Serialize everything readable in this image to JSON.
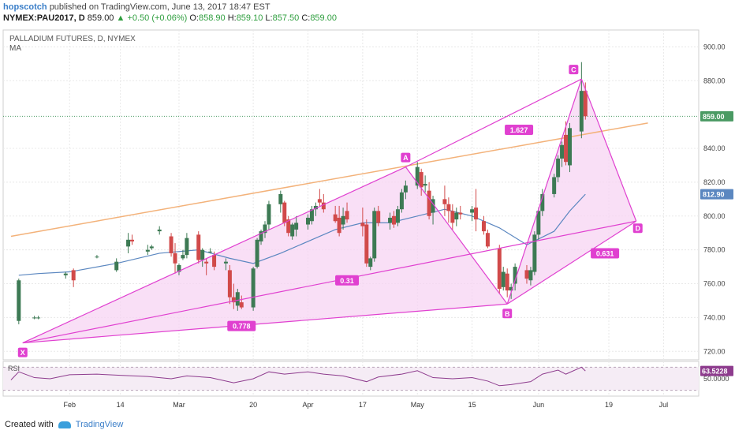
{
  "header": {
    "author": "hopscotch",
    "published_text": "published on TradingView.com, June 13, 2017 18:47 EST",
    "symbol": "NYMEX:PAU2017, D",
    "last": "859.00",
    "change": "▲ +0.50 (+0.06%)",
    "o_label": "O:",
    "o_value": "858.90",
    "h_label": "H:",
    "h_value": "859.10",
    "l_label": "L:",
    "l_value": "857.50",
    "c_label": "C:",
    "c_value": "859.00"
  },
  "footer": {
    "created_with": "Created with",
    "brand": "TradingView"
  },
  "colors": {
    "up": "#3d7a54",
    "down": "#d14a4a",
    "harmonic": "#e040d0",
    "harmonic_fill": "#f7d4f3",
    "trendline": "#f3b27a",
    "ma": "#5b87c0",
    "rsi": "#8e3c8e",
    "price_label": "#4a9a63",
    "ma_label": "#5b87c0",
    "rsi_label": "#8e3c8e",
    "grid": "#e8e8e8"
  },
  "chart_data": {
    "type": "candlestick",
    "title": "PALLADIUM FUTURES, D, NYMEX",
    "indicator_label": "MA",
    "ylim": [
      715,
      910
    ],
    "y_ticks": [
      "900.00",
      "880.00",
      "840.00",
      "820.00",
      "800.00",
      "780.00",
      "760.00",
      "740.00",
      "720.00"
    ],
    "x_ticks": [
      {
        "label": "Feb",
        "date": "2017-02-01"
      },
      {
        "label": "14",
        "date": "2017-02-14"
      },
      {
        "label": "Mar",
        "date": "2017-03-01"
      },
      {
        "label": "20",
        "date": "2017-03-20"
      },
      {
        "label": "Apr",
        "date": "2017-04-03"
      },
      {
        "label": "17",
        "date": "2017-04-17"
      },
      {
        "label": "May",
        "date": "2017-05-01"
      },
      {
        "label": "15",
        "date": "2017-05-15"
      },
      {
        "label": "Jun",
        "date": "2017-06-01"
      },
      {
        "label": "19",
        "date": "2017-06-19"
      },
      {
        "label": "Jul",
        "date": "2017-07-03"
      }
    ],
    "candles": [
      {
        "d": "2017-01-19",
        "o": 738,
        "h": 763,
        "l": 736,
        "c": 762
      },
      {
        "d": "2017-01-23",
        "o": 740,
        "h": 741,
        "l": 739,
        "c": 740
      },
      {
        "d": "2017-01-24",
        "o": 740,
        "h": 741,
        "l": 739,
        "c": 740
      },
      {
        "d": "2017-01-31",
        "o": 765,
        "h": 767,
        "l": 763,
        "c": 766
      },
      {
        "d": "2017-02-02",
        "o": 768,
        "h": 769,
        "l": 758,
        "c": 762
      },
      {
        "d": "2017-02-08",
        "o": 776,
        "h": 777,
        "l": 775,
        "c": 776
      },
      {
        "d": "2017-02-13",
        "o": 768,
        "h": 775,
        "l": 767,
        "c": 773
      },
      {
        "d": "2017-02-16",
        "o": 782,
        "h": 790,
        "l": 778,
        "c": 786
      },
      {
        "d": "2017-02-17",
        "o": 786,
        "h": 789,
        "l": 783,
        "c": 785
      },
      {
        "d": "2017-02-21",
        "o": 779,
        "h": 783,
        "l": 777,
        "c": 780
      },
      {
        "d": "2017-02-22",
        "o": 781,
        "h": 783,
        "l": 780,
        "c": 782
      },
      {
        "d": "2017-02-24",
        "o": 791,
        "h": 794,
        "l": 789,
        "c": 792
      },
      {
        "d": "2017-02-27",
        "o": 788,
        "h": 790,
        "l": 776,
        "c": 778
      },
      {
        "d": "2017-02-28",
        "o": 778,
        "h": 784,
        "l": 766,
        "c": 772
      },
      {
        "d": "2017-03-01",
        "o": 767,
        "h": 772,
        "l": 765,
        "c": 771
      },
      {
        "d": "2017-03-02",
        "o": 775,
        "h": 780,
        "l": 774,
        "c": 777
      },
      {
        "d": "2017-03-03",
        "o": 777,
        "h": 790,
        "l": 775,
        "c": 787
      },
      {
        "d": "2017-03-06",
        "o": 789,
        "h": 791,
        "l": 772,
        "c": 774
      },
      {
        "d": "2017-03-07",
        "o": 774,
        "h": 781,
        "l": 770,
        "c": 780
      },
      {
        "d": "2017-03-08",
        "o": 773,
        "h": 775,
        "l": 765,
        "c": 772
      },
      {
        "d": "2017-03-09",
        "o": 779,
        "h": 781,
        "l": 778,
        "c": 779
      },
      {
        "d": "2017-03-10",
        "o": 777,
        "h": 779,
        "l": 768,
        "c": 770
      },
      {
        "d": "2017-03-13",
        "o": 772,
        "h": 775,
        "l": 768,
        "c": 773
      },
      {
        "d": "2017-03-14",
        "o": 768,
        "h": 771,
        "l": 748,
        "c": 752
      },
      {
        "d": "2017-03-15",
        "o": 752,
        "h": 760,
        "l": 745,
        "c": 749
      },
      {
        "d": "2017-03-16",
        "o": 747,
        "h": 757,
        "l": 744,
        "c": 755
      },
      {
        "d": "2017-03-17",
        "o": 749,
        "h": 753,
        "l": 745,
        "c": 746
      },
      {
        "d": "2017-03-20",
        "o": 746,
        "h": 770,
        "l": 744,
        "c": 769
      },
      {
        "d": "2017-03-21",
        "o": 770,
        "h": 787,
        "l": 769,
        "c": 786
      },
      {
        "d": "2017-03-22",
        "o": 785,
        "h": 792,
        "l": 783,
        "c": 791
      },
      {
        "d": "2017-03-23",
        "o": 790,
        "h": 797,
        "l": 787,
        "c": 795
      },
      {
        "d": "2017-03-24",
        "o": 795,
        "h": 809,
        "l": 792,
        "c": 807
      },
      {
        "d": "2017-03-27",
        "o": 807,
        "h": 815,
        "l": 802,
        "c": 813
      },
      {
        "d": "2017-03-28",
        "o": 808,
        "h": 809,
        "l": 794,
        "c": 796
      },
      {
        "d": "2017-03-29",
        "o": 798,
        "h": 800,
        "l": 788,
        "c": 790
      },
      {
        "d": "2017-03-30",
        "o": 788,
        "h": 796,
        "l": 786,
        "c": 795
      },
      {
        "d": "2017-03-31",
        "o": 792,
        "h": 800,
        "l": 788,
        "c": 796
      },
      {
        "d": "2017-04-03",
        "o": 795,
        "h": 801,
        "l": 792,
        "c": 799
      },
      {
        "d": "2017-04-04",
        "o": 797,
        "h": 806,
        "l": 795,
        "c": 804
      },
      {
        "d": "2017-04-05",
        "o": 804,
        "h": 808,
        "l": 800,
        "c": 806
      },
      {
        "d": "2017-04-06",
        "o": 810,
        "h": 816,
        "l": 806,
        "c": 808
      },
      {
        "d": "2017-04-07",
        "o": 808,
        "h": 813,
        "l": 802,
        "c": 804
      },
      {
        "d": "2017-04-10",
        "o": 801,
        "h": 806,
        "l": 796,
        "c": 797
      },
      {
        "d": "2017-04-11",
        "o": 799,
        "h": 806,
        "l": 788,
        "c": 790
      },
      {
        "d": "2017-04-12",
        "o": 795,
        "h": 805,
        "l": 792,
        "c": 800
      },
      {
        "d": "2017-04-13",
        "o": 803,
        "h": 808,
        "l": 796,
        "c": 798
      },
      {
        "d": "2017-04-17",
        "o": 796,
        "h": 805,
        "l": 788,
        "c": 794
      },
      {
        "d": "2017-04-18",
        "o": 795,
        "h": 798,
        "l": 770,
        "c": 772
      },
      {
        "d": "2017-04-19",
        "o": 770,
        "h": 776,
        "l": 768,
        "c": 775
      },
      {
        "d": "2017-04-20",
        "o": 775,
        "h": 805,
        "l": 773,
        "c": 803
      },
      {
        "d": "2017-04-21",
        "o": 803,
        "h": 806,
        "l": 794,
        "c": 796
      },
      {
        "d": "2017-04-24",
        "o": 796,
        "h": 802,
        "l": 792,
        "c": 799
      },
      {
        "d": "2017-04-25",
        "o": 800,
        "h": 803,
        "l": 793,
        "c": 795
      },
      {
        "d": "2017-04-26",
        "o": 796,
        "h": 806,
        "l": 794,
        "c": 804
      },
      {
        "d": "2017-04-27",
        "o": 804,
        "h": 816,
        "l": 802,
        "c": 814
      },
      {
        "d": "2017-04-28",
        "o": 814,
        "h": 821,
        "l": 810,
        "c": 818
      },
      {
        "d": "2017-05-01",
        "o": 818,
        "h": 832,
        "l": 816,
        "c": 829
      },
      {
        "d": "2017-05-02",
        "o": 826,
        "h": 828,
        "l": 812,
        "c": 817
      },
      {
        "d": "2017-05-03",
        "o": 818,
        "h": 824,
        "l": 814,
        "c": 819
      },
      {
        "d": "2017-05-04",
        "o": 815,
        "h": 820,
        "l": 798,
        "c": 800
      },
      {
        "d": "2017-05-05",
        "o": 802,
        "h": 812,
        "l": 795,
        "c": 810
      },
      {
        "d": "2017-05-08",
        "o": 810,
        "h": 818,
        "l": 800,
        "c": 807
      },
      {
        "d": "2017-05-09",
        "o": 807,
        "h": 811,
        "l": 796,
        "c": 803
      },
      {
        "d": "2017-05-10",
        "o": 803,
        "h": 807,
        "l": 792,
        "c": 796
      },
      {
        "d": "2017-05-11",
        "o": 798,
        "h": 805,
        "l": 794,
        "c": 802
      },
      {
        "d": "2017-05-12",
        "o": 802,
        "h": 806,
        "l": 798,
        "c": 801
      },
      {
        "d": "2017-05-15",
        "o": 802,
        "h": 806,
        "l": 797,
        "c": 804
      },
      {
        "d": "2017-05-16",
        "o": 805,
        "h": 816,
        "l": 791,
        "c": 798
      },
      {
        "d": "2017-05-18",
        "o": 797,
        "h": 800,
        "l": 789,
        "c": 791
      },
      {
        "d": "2017-05-19",
        "o": 790,
        "h": 792,
        "l": 781,
        "c": 782
      },
      {
        "d": "2017-05-22",
        "o": 781,
        "h": 783,
        "l": 754,
        "c": 757
      },
      {
        "d": "2017-05-23",
        "o": 758,
        "h": 770,
        "l": 756,
        "c": 767
      },
      {
        "d": "2017-05-24",
        "o": 766,
        "h": 769,
        "l": 752,
        "c": 756
      },
      {
        "d": "2017-05-25",
        "o": 756,
        "h": 760,
        "l": 751,
        "c": 758
      },
      {
        "d": "2017-05-26",
        "o": 760,
        "h": 772,
        "l": 756,
        "c": 770
      },
      {
        "d": "2017-05-29",
        "o": 768,
        "h": 771,
        "l": 760,
        "c": 763
      },
      {
        "d": "2017-05-30",
        "o": 762,
        "h": 770,
        "l": 759,
        "c": 768
      },
      {
        "d": "2017-05-31",
        "o": 767,
        "h": 791,
        "l": 765,
        "c": 789
      },
      {
        "d": "2017-06-01",
        "o": 789,
        "h": 805,
        "l": 786,
        "c": 803
      },
      {
        "d": "2017-06-02",
        "o": 803,
        "h": 816,
        "l": 800,
        "c": 813
      },
      {
        "d": "2017-06-05",
        "o": 813,
        "h": 825,
        "l": 811,
        "c": 823
      },
      {
        "d": "2017-06-06",
        "o": 823,
        "h": 836,
        "l": 820,
        "c": 834
      },
      {
        "d": "2017-06-07",
        "o": 834,
        "h": 844,
        "l": 829,
        "c": 842
      },
      {
        "d": "2017-06-08",
        "o": 848,
        "h": 856,
        "l": 830,
        "c": 832
      },
      {
        "d": "2017-06-09",
        "o": 830,
        "h": 855,
        "l": 826,
        "c": 852
      },
      {
        "d": "2017-06-12",
        "o": 850,
        "h": 891,
        "l": 846,
        "c": 874
      },
      {
        "d": "2017-06-13",
        "o": 874,
        "h": 879,
        "l": 857,
        "c": 859
      }
    ],
    "moving_average": [
      {
        "d": "2017-01-19",
        "v": 765
      },
      {
        "d": "2017-01-24",
        "v": 766
      },
      {
        "d": "2017-02-01",
        "v": 767
      },
      {
        "d": "2017-02-13",
        "v": 772
      },
      {
        "d": "2017-02-24",
        "v": 778
      },
      {
        "d": "2017-03-06",
        "v": 780
      },
      {
        "d": "2017-03-14",
        "v": 775
      },
      {
        "d": "2017-03-20",
        "v": 772
      },
      {
        "d": "2017-03-27",
        "v": 778
      },
      {
        "d": "2017-04-03",
        "v": 785
      },
      {
        "d": "2017-04-10",
        "v": 792
      },
      {
        "d": "2017-04-17",
        "v": 796
      },
      {
        "d": "2017-04-24",
        "v": 796
      },
      {
        "d": "2017-05-01",
        "v": 800
      },
      {
        "d": "2017-05-08",
        "v": 804
      },
      {
        "d": "2017-05-15",
        "v": 800
      },
      {
        "d": "2017-05-22",
        "v": 793
      },
      {
        "d": "2017-05-29",
        "v": 783
      },
      {
        "d": "2017-06-05",
        "v": 791
      },
      {
        "d": "2017-06-09",
        "v": 803
      },
      {
        "d": "2017-06-13",
        "v": 812.9
      }
    ],
    "trendline": [
      {
        "d": "2017-01-17",
        "v": 788
      },
      {
        "d": "2017-06-29",
        "v": 855
      }
    ],
    "harmonic_pattern": {
      "points": [
        {
          "label": "X",
          "d": "2017-01-20",
          "v": 725
        },
        {
          "label": "A",
          "d": "2017-04-28",
          "v": 829
        },
        {
          "label": "B",
          "d": "2017-05-24",
          "v": 748
        },
        {
          "label": "C",
          "d": "2017-06-12",
          "v": 881
        },
        {
          "label": "D",
          "d": "2017-06-26",
          "v": 797
        }
      ],
      "ratios": [
        {
          "label": "1.627",
          "d": "2017-05-27",
          "v": 851
        },
        {
          "label": "0.31",
          "d": "2017-04-13",
          "v": 762
        },
        {
          "label": "0.778",
          "d": "2017-03-17",
          "v": 735
        },
        {
          "label": "0.631",
          "d": "2017-06-18",
          "v": 778
        }
      ]
    },
    "price_labels": [
      {
        "kind": "last",
        "text": "859.00",
        "v": 859
      },
      {
        "kind": "ma",
        "text": "812.90",
        "v": 812.9
      }
    ],
    "rsi": {
      "label": "RSI",
      "value_label": "63.5228",
      "tick_label": "50.0000",
      "ylim": [
        20,
        80
      ],
      "band": [
        30,
        70
      ],
      "values": [
        {
          "d": "2017-01-17",
          "v": 48
        },
        {
          "d": "2017-01-19",
          "v": 62
        },
        {
          "d": "2017-01-23",
          "v": 52
        },
        {
          "d": "2017-01-27",
          "v": 50
        },
        {
          "d": "2017-02-01",
          "v": 57
        },
        {
          "d": "2017-02-08",
          "v": 58
        },
        {
          "d": "2017-02-14",
          "v": 56
        },
        {
          "d": "2017-02-21",
          "v": 54
        },
        {
          "d": "2017-02-27",
          "v": 50
        },
        {
          "d": "2017-03-03",
          "v": 55
        },
        {
          "d": "2017-03-09",
          "v": 52
        },
        {
          "d": "2017-03-15",
          "v": 43
        },
        {
          "d": "2017-03-20",
          "v": 50
        },
        {
          "d": "2017-03-24",
          "v": 62
        },
        {
          "d": "2017-03-28",
          "v": 58
        },
        {
          "d": "2017-04-03",
          "v": 62
        },
        {
          "d": "2017-04-07",
          "v": 58
        },
        {
          "d": "2017-04-12",
          "v": 55
        },
        {
          "d": "2017-04-18",
          "v": 45
        },
        {
          "d": "2017-04-21",
          "v": 53
        },
        {
          "d": "2017-04-27",
          "v": 58
        },
        {
          "d": "2017-05-01",
          "v": 64
        },
        {
          "d": "2017-05-05",
          "v": 52
        },
        {
          "d": "2017-05-10",
          "v": 50
        },
        {
          "d": "2017-05-15",
          "v": 52
        },
        {
          "d": "2017-05-19",
          "v": 46
        },
        {
          "d": "2017-05-22",
          "v": 38
        },
        {
          "d": "2017-05-25",
          "v": 40
        },
        {
          "d": "2017-05-30",
          "v": 45
        },
        {
          "d": "2017-06-02",
          "v": 58
        },
        {
          "d": "2017-06-06",
          "v": 65
        },
        {
          "d": "2017-06-08",
          "v": 58
        },
        {
          "d": "2017-06-12",
          "v": 70
        },
        {
          "d": "2017-06-13",
          "v": 63.5
        }
      ]
    }
  }
}
